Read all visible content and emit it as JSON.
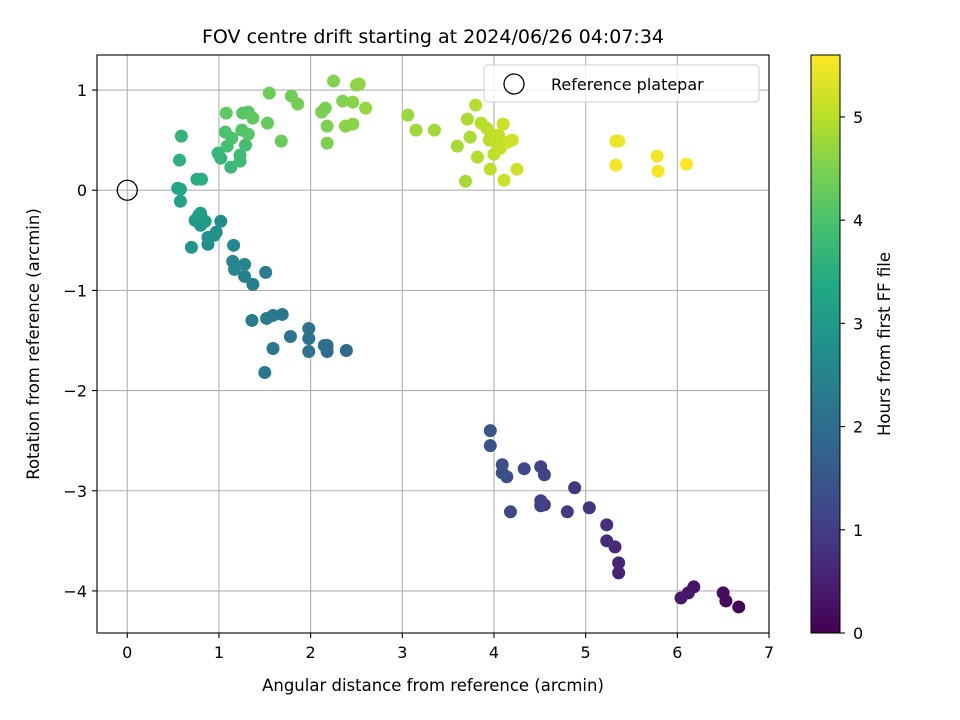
{
  "chart_data": {
    "type": "scatter",
    "title": "FOV centre drift starting at 2024/06/26 04:07:34",
    "xlabel": "Angular distance from reference (arcmin)",
    "ylabel": "Rotation from reference (arcmin)",
    "xlim": [
      -0.33,
      7.0
    ],
    "ylim": [
      -4.42,
      1.35
    ],
    "xticks": [
      0,
      1,
      2,
      3,
      4,
      5,
      6,
      7
    ],
    "yticks": [
      1,
      0,
      -1,
      -2,
      -3,
      -4
    ],
    "xtick_labels": [
      "0",
      "1",
      "2",
      "3",
      "4",
      "5",
      "6",
      "7"
    ],
    "ytick_labels": [
      "1",
      "0",
      "−1",
      "−2",
      "−3",
      "−4"
    ],
    "grid": true,
    "legend": {
      "entries": [
        "Reference platepar"
      ],
      "placement": "top-right"
    },
    "reference_point": {
      "x": 0,
      "y": 0,
      "marker": "open-circle",
      "label": "Reference platepar"
    },
    "colorbar": {
      "label": "Hours from first FF file",
      "colormap": "viridis",
      "range": [
        0,
        5.6
      ],
      "ticks": [
        0,
        1,
        2,
        3,
        4,
        5
      ],
      "tick_labels": [
        "0",
        "1",
        "2",
        "3",
        "4",
        "5"
      ]
    },
    "points": [
      {
        "x": 6.67,
        "y": -4.16,
        "h": 0.05
      },
      {
        "x": 6.53,
        "y": -4.1,
        "h": 0.15
      },
      {
        "x": 6.5,
        "y": -4.02,
        "h": 0.2
      },
      {
        "x": 6.18,
        "y": -3.96,
        "h": 0.3
      },
      {
        "x": 6.12,
        "y": -4.02,
        "h": 0.35
      },
      {
        "x": 6.04,
        "y": -4.07,
        "h": 0.4
      },
      {
        "x": 5.36,
        "y": -3.82,
        "h": 0.55
      },
      {
        "x": 5.36,
        "y": -3.72,
        "h": 0.6
      },
      {
        "x": 5.32,
        "y": -3.56,
        "h": 0.65
      },
      {
        "x": 5.23,
        "y": -3.5,
        "h": 0.7
      },
      {
        "x": 5.23,
        "y": -3.34,
        "h": 0.75
      },
      {
        "x": 5.04,
        "y": -3.17,
        "h": 0.85
      },
      {
        "x": 4.88,
        "y": -2.97,
        "h": 0.9
      },
      {
        "x": 4.8,
        "y": -3.21,
        "h": 0.95
      },
      {
        "x": 4.55,
        "y": -3.14,
        "h": 1.0
      },
      {
        "x": 4.51,
        "y": -3.15,
        "h": 1.05
      },
      {
        "x": 4.51,
        "y": -3.1,
        "h": 1.1
      },
      {
        "x": 4.55,
        "y": -2.84,
        "h": 1.1
      },
      {
        "x": 4.51,
        "y": -2.76,
        "h": 1.15
      },
      {
        "x": 4.33,
        "y": -2.78,
        "h": 1.2
      },
      {
        "x": 4.18,
        "y": -3.21,
        "h": 1.25
      },
      {
        "x": 4.14,
        "y": -2.86,
        "h": 1.3
      },
      {
        "x": 4.09,
        "y": -2.82,
        "h": 1.35
      },
      {
        "x": 4.09,
        "y": -2.74,
        "h": 1.35
      },
      {
        "x": 3.96,
        "y": -2.55,
        "h": 1.4
      },
      {
        "x": 3.96,
        "y": -2.4,
        "h": 1.45
      },
      {
        "x": 2.39,
        "y": -1.6,
        "h": 1.95
      },
      {
        "x": 2.18,
        "y": -1.61,
        "h": 2.0
      },
      {
        "x": 2.18,
        "y": -1.55,
        "h": 2.0
      },
      {
        "x": 2.15,
        "y": -1.55,
        "h": 2.05
      },
      {
        "x": 1.98,
        "y": -1.61,
        "h": 2.05
      },
      {
        "x": 1.98,
        "y": -1.48,
        "h": 2.1
      },
      {
        "x": 1.98,
        "y": -1.38,
        "h": 2.1
      },
      {
        "x": 1.78,
        "y": -1.46,
        "h": 2.15
      },
      {
        "x": 1.69,
        "y": -1.24,
        "h": 2.2
      },
      {
        "x": 1.59,
        "y": -1.58,
        "h": 2.2
      },
      {
        "x": 1.59,
        "y": -1.25,
        "h": 2.25
      },
      {
        "x": 1.5,
        "y": -1.82,
        "h": 2.25
      },
      {
        "x": 1.52,
        "y": -1.28,
        "h": 2.3
      },
      {
        "x": 1.36,
        "y": -1.3,
        "h": 2.3
      },
      {
        "x": 1.51,
        "y": -0.82,
        "h": 2.35
      },
      {
        "x": 1.37,
        "y": -0.94,
        "h": 2.4
      },
      {
        "x": 1.28,
        "y": -0.86,
        "h": 2.45
      },
      {
        "x": 1.28,
        "y": -0.74,
        "h": 2.5
      },
      {
        "x": 1.17,
        "y": -0.79,
        "h": 2.55
      },
      {
        "x": 1.15,
        "y": -0.71,
        "h": 2.55
      },
      {
        "x": 1.16,
        "y": -0.55,
        "h": 2.6
      },
      {
        "x": 0.97,
        "y": -0.42,
        "h": 2.65
      },
      {
        "x": 1.02,
        "y": -0.31,
        "h": 2.7
      },
      {
        "x": 0.88,
        "y": -0.54,
        "h": 2.75
      },
      {
        "x": 0.88,
        "y": -0.47,
        "h": 2.8
      },
      {
        "x": 0.95,
        "y": -0.45,
        "h": 2.85
      },
      {
        "x": 0.7,
        "y": -0.57,
        "h": 2.9
      },
      {
        "x": 0.8,
        "y": -0.35,
        "h": 2.95
      },
      {
        "x": 0.74,
        "y": -0.3,
        "h": 3.0
      },
      {
        "x": 0.85,
        "y": -0.31,
        "h": 3.05
      },
      {
        "x": 0.78,
        "y": -0.25,
        "h": 3.1
      },
      {
        "x": 0.8,
        "y": -0.23,
        "h": 3.15
      },
      {
        "x": 0.58,
        "y": -0.11,
        "h": 3.2
      },
      {
        "x": 0.58,
        "y": 0.01,
        "h": 3.3
      },
      {
        "x": 0.55,
        "y": 0.02,
        "h": 3.35
      },
      {
        "x": 0.76,
        "y": 0.11,
        "h": 3.45
      },
      {
        "x": 0.81,
        "y": 0.11,
        "h": 3.5
      },
      {
        "x": 0.57,
        "y": 0.3,
        "h": 3.55
      },
      {
        "x": 0.59,
        "y": 0.54,
        "h": 3.6
      },
      {
        "x": 1.02,
        "y": 0.32,
        "h": 3.65
      },
      {
        "x": 0.99,
        "y": 0.37,
        "h": 3.7
      },
      {
        "x": 1.13,
        "y": 0.23,
        "h": 3.75
      },
      {
        "x": 1.23,
        "y": 0.29,
        "h": 3.8
      },
      {
        "x": 1.23,
        "y": 0.35,
        "h": 3.85
      },
      {
        "x": 1.29,
        "y": 0.45,
        "h": 3.9
      },
      {
        "x": 1.09,
        "y": 0.44,
        "h": 3.95
      },
      {
        "x": 1.14,
        "y": 0.52,
        "h": 4.0
      },
      {
        "x": 1.07,
        "y": 0.58,
        "h": 4.0
      },
      {
        "x": 1.25,
        "y": 0.6,
        "h": 4.05
      },
      {
        "x": 1.32,
        "y": 0.56,
        "h": 4.1
      },
      {
        "x": 1.26,
        "y": 0.77,
        "h": 4.1
      },
      {
        "x": 1.32,
        "y": 0.78,
        "h": 4.15
      },
      {
        "x": 1.08,
        "y": 0.77,
        "h": 4.2
      },
      {
        "x": 1.37,
        "y": 0.72,
        "h": 4.2
      },
      {
        "x": 1.53,
        "y": 0.67,
        "h": 4.25
      },
      {
        "x": 1.68,
        "y": 0.49,
        "h": 4.3
      },
      {
        "x": 1.55,
        "y": 0.97,
        "h": 4.35
      },
      {
        "x": 1.79,
        "y": 0.94,
        "h": 4.35
      },
      {
        "x": 1.86,
        "y": 0.86,
        "h": 4.4
      },
      {
        "x": 2.12,
        "y": 0.78,
        "h": 4.45
      },
      {
        "x": 2.16,
        "y": 0.82,
        "h": 4.45
      },
      {
        "x": 2.18,
        "y": 0.64,
        "h": 4.5
      },
      {
        "x": 2.18,
        "y": 0.47,
        "h": 4.5
      },
      {
        "x": 2.25,
        "y": 1.09,
        "h": 4.55
      },
      {
        "x": 2.35,
        "y": 0.89,
        "h": 4.55
      },
      {
        "x": 2.38,
        "y": 0.64,
        "h": 4.6
      },
      {
        "x": 2.46,
        "y": 0.66,
        "h": 4.6
      },
      {
        "x": 2.46,
        "y": 0.88,
        "h": 4.6
      },
      {
        "x": 2.5,
        "y": 1.05,
        "h": 4.65
      },
      {
        "x": 2.53,
        "y": 1.06,
        "h": 4.65
      },
      {
        "x": 2.6,
        "y": 0.82,
        "h": 4.7
      },
      {
        "x": 3.06,
        "y": 0.75,
        "h": 4.75
      },
      {
        "x": 3.15,
        "y": 0.6,
        "h": 4.8
      },
      {
        "x": 3.35,
        "y": 0.6,
        "h": 4.8
      },
      {
        "x": 3.6,
        "y": 0.44,
        "h": 4.85
      },
      {
        "x": 3.69,
        "y": 0.09,
        "h": 4.85
      },
      {
        "x": 3.71,
        "y": 0.71,
        "h": 4.9
      },
      {
        "x": 3.74,
        "y": 0.53,
        "h": 4.9
      },
      {
        "x": 3.8,
        "y": 0.85,
        "h": 4.95
      },
      {
        "x": 3.82,
        "y": 0.33,
        "h": 4.95
      },
      {
        "x": 3.86,
        "y": 0.67,
        "h": 5.0
      },
      {
        "x": 3.92,
        "y": 0.62,
        "h": 5.0
      },
      {
        "x": 3.95,
        "y": 0.5,
        "h": 5.0
      },
      {
        "x": 3.96,
        "y": 0.21,
        "h": 5.05
      },
      {
        "x": 3.97,
        "y": 0.56,
        "h": 5.05
      },
      {
        "x": 4.0,
        "y": 0.36,
        "h": 5.05
      },
      {
        "x": 4.02,
        "y": 0.48,
        "h": 5.1
      },
      {
        "x": 4.05,
        "y": 0.55,
        "h": 5.1
      },
      {
        "x": 4.07,
        "y": 0.42,
        "h": 5.1
      },
      {
        "x": 4.1,
        "y": 0.66,
        "h": 5.15
      },
      {
        "x": 4.11,
        "y": 0.1,
        "h": 5.15
      },
      {
        "x": 4.15,
        "y": 0.48,
        "h": 5.15
      },
      {
        "x": 4.2,
        "y": 0.5,
        "h": 5.2
      },
      {
        "x": 4.25,
        "y": 0.21,
        "h": 5.2
      },
      {
        "x": 5.33,
        "y": 0.49,
        "h": 5.45
      },
      {
        "x": 5.36,
        "y": 0.49,
        "h": 5.45
      },
      {
        "x": 5.33,
        "y": 0.25,
        "h": 5.5
      },
      {
        "x": 5.78,
        "y": 0.34,
        "h": 5.5
      },
      {
        "x": 5.79,
        "y": 0.19,
        "h": 5.55
      },
      {
        "x": 6.1,
        "y": 0.26,
        "h": 5.6
      }
    ]
  }
}
